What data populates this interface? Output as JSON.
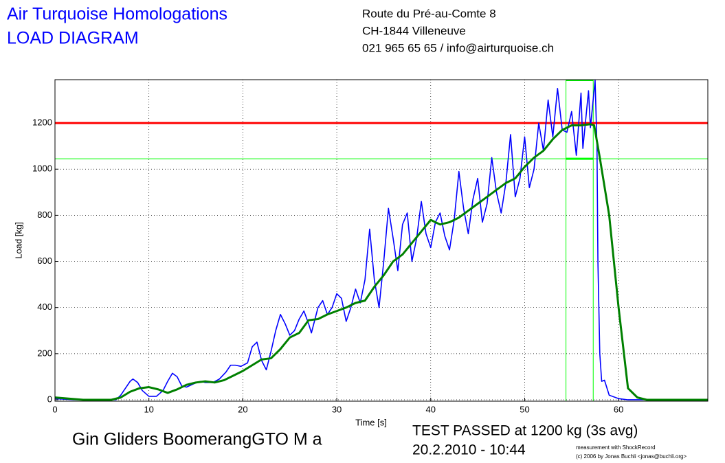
{
  "chart_data": {
    "type": "line",
    "title": "Air Turquoise Homologations",
    "subtitle": "LOAD DIAGRAM",
    "address": [
      "Route du Pré-au-Comte 8",
      "CH-1844 Villeneuve",
      "021 965 65 65 / info@airturquoise.ch"
    ],
    "xlabel": "Time [s]",
    "ylabel": "Load [kg]",
    "product": "Gin Gliders BoomerangGTO M a",
    "result": "TEST PASSED at 1200 kg (3s avg)",
    "date": "20.2.2010 - 10:44",
    "credits": [
      "measurement with ShockRecord",
      "(c) 2006 by Jonas Buchli <jonas@buchli.org>"
    ],
    "xlim": [
      0,
      69.5
    ],
    "ylim": [
      -6,
      1388
    ],
    "xticks": [
      0,
      10,
      20,
      30,
      40,
      50,
      60
    ],
    "yticks": [
      0,
      200,
      400,
      600,
      800,
      1000,
      1200
    ],
    "grid": true,
    "hlines": [
      {
        "value": 1200,
        "color": "#ff0000"
      },
      {
        "value": 1045,
        "color": "#00ff00"
      }
    ],
    "window": {
      "x": [
        54.4,
        57.3
      ],
      "value": 1045,
      "color": "#00ff00"
    },
    "series": [
      {
        "color": "#0000ff",
        "x": [
          0,
          2,
          4,
          6,
          6.5,
          7,
          7.5,
          8,
          8.3,
          8.8,
          9.3,
          10,
          10.8,
          11.5,
          12,
          12.5,
          13,
          13.5,
          14,
          14.8,
          15.5,
          16,
          16.8,
          17.5,
          18.2,
          18.7,
          19.2,
          19.8,
          20.5,
          21,
          21.5,
          22,
          22.5,
          23,
          23.5,
          24,
          24.5,
          25,
          25.5,
          26,
          26.5,
          27,
          27.3,
          28,
          28.5,
          29,
          29.5,
          30,
          30.5,
          31,
          31.5,
          32,
          32.5,
          33,
          33.5,
          34,
          34.5,
          35,
          35.5,
          36,
          36.5,
          37,
          37.5,
          38,
          38.5,
          39,
          39.5,
          40,
          40.5,
          41,
          41.5,
          42,
          42.5,
          43,
          43.5,
          44,
          44.5,
          45,
          45.5,
          46,
          46.5,
          47,
          47.5,
          48,
          48.5,
          49,
          49.5,
          50,
          50.5,
          51,
          51.5,
          52,
          52.5,
          53,
          53.5,
          54,
          54.5,
          55,
          55.5,
          56,
          56.2,
          56.8,
          57,
          57.5,
          57.7,
          57.8,
          58,
          58.2,
          58.5,
          59,
          60,
          61,
          69.5
        ],
        "values": [
          5,
          0,
          0,
          0,
          0,
          20,
          50,
          80,
          90,
          75,
          40,
          15,
          15,
          40,
          80,
          115,
          100,
          60,
          55,
          70,
          80,
          75,
          75,
          90,
          120,
          150,
          150,
          145,
          160,
          230,
          250,
          170,
          130,
          210,
          300,
          370,
          330,
          280,
          300,
          350,
          385,
          330,
          290,
          400,
          430,
          370,
          400,
          460,
          440,
          340,
          400,
          480,
          420,
          520,
          740,
          520,
          400,
          600,
          830,
          700,
          560,
          760,
          810,
          600,
          700,
          860,
          720,
          660,
          770,
          810,
          710,
          650,
          780,
          990,
          830,
          720,
          870,
          960,
          770,
          850,
          1050,
          900,
          810,
          940,
          1150,
          880,
          960,
          1140,
          920,
          1000,
          1200,
          1080,
          1300,
          1140,
          1350,
          1170,
          1160,
          1250,
          1060,
          1330,
          1090,
          1340,
          1180,
          1385,
          1100,
          600,
          200,
          80,
          85,
          20,
          5,
          0,
          0
        ]
      },
      {
        "color": "#008000",
        "x": [
          0,
          3,
          6,
          7,
          8,
          9,
          10,
          11,
          12,
          13,
          14,
          15,
          16,
          17,
          18,
          19,
          20,
          21,
          22,
          23,
          24,
          25,
          26,
          27,
          28,
          29,
          30,
          31,
          32,
          33,
          34,
          35,
          36,
          37,
          38,
          39,
          40,
          41,
          42,
          43,
          44,
          45,
          46,
          47,
          48,
          49,
          50,
          51,
          52,
          53,
          54,
          55,
          56,
          57,
          57.4,
          58,
          59,
          60,
          61,
          62,
          63,
          69.5
        ],
        "values": [
          10,
          0,
          0,
          10,
          35,
          50,
          55,
          45,
          30,
          45,
          65,
          75,
          80,
          75,
          85,
          105,
          125,
          150,
          175,
          180,
          220,
          270,
          290,
          345,
          350,
          370,
          385,
          400,
          420,
          430,
          490,
          540,
          600,
          630,
          680,
          730,
          780,
          760,
          770,
          790,
          820,
          850,
          880,
          910,
          940,
          960,
          1010,
          1050,
          1080,
          1130,
          1170,
          1190,
          1190,
          1195,
          1190,
          1050,
          800,
          400,
          50,
          10,
          0,
          0
        ]
      }
    ]
  }
}
